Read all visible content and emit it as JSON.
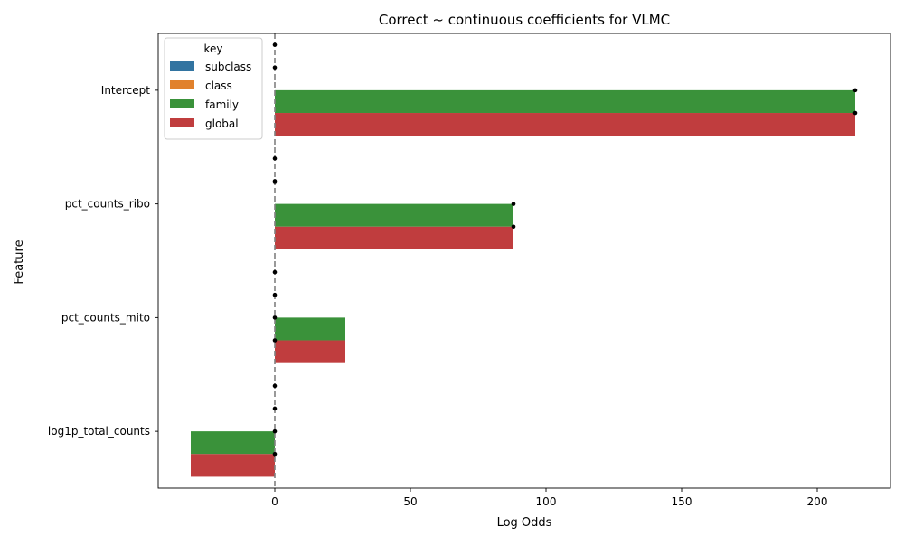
{
  "chart_data": {
    "type": "bar",
    "orientation": "horizontal",
    "title": "Correct ~ continuous coefficients for VLMC",
    "xlabel": "Log Odds",
    "ylabel": "Feature",
    "categories": [
      "Intercept",
      "pct_counts_ribo",
      "pct_counts_mito",
      "log1p_total_counts"
    ],
    "xlim": [
      -43,
      227
    ],
    "xticks": [
      0,
      50,
      100,
      150,
      200
    ],
    "reference_line": {
      "x": 0,
      "style": "dashed",
      "color": "#808080"
    },
    "legend": {
      "title": "key",
      "placement": "top-left"
    },
    "series": [
      {
        "name": "subclass",
        "color": "#3274a1",
        "values": [
          0,
          0,
          0,
          0
        ],
        "points": [
          0,
          0,
          0,
          0
        ]
      },
      {
        "name": "class",
        "color": "#e1812c",
        "values": [
          0,
          0,
          0,
          0
        ],
        "points": [
          0,
          0,
          0,
          0
        ]
      },
      {
        "name": "family",
        "color": "#3a923a",
        "values": [
          214,
          88,
          26,
          -31
        ],
        "points": [
          214,
          88,
          0,
          0
        ]
      },
      {
        "name": "global",
        "color": "#c03d3e",
        "values": [
          214,
          88,
          26,
          -31
        ],
        "points": [
          214,
          88,
          0,
          0
        ]
      }
    ],
    "grid": false
  }
}
